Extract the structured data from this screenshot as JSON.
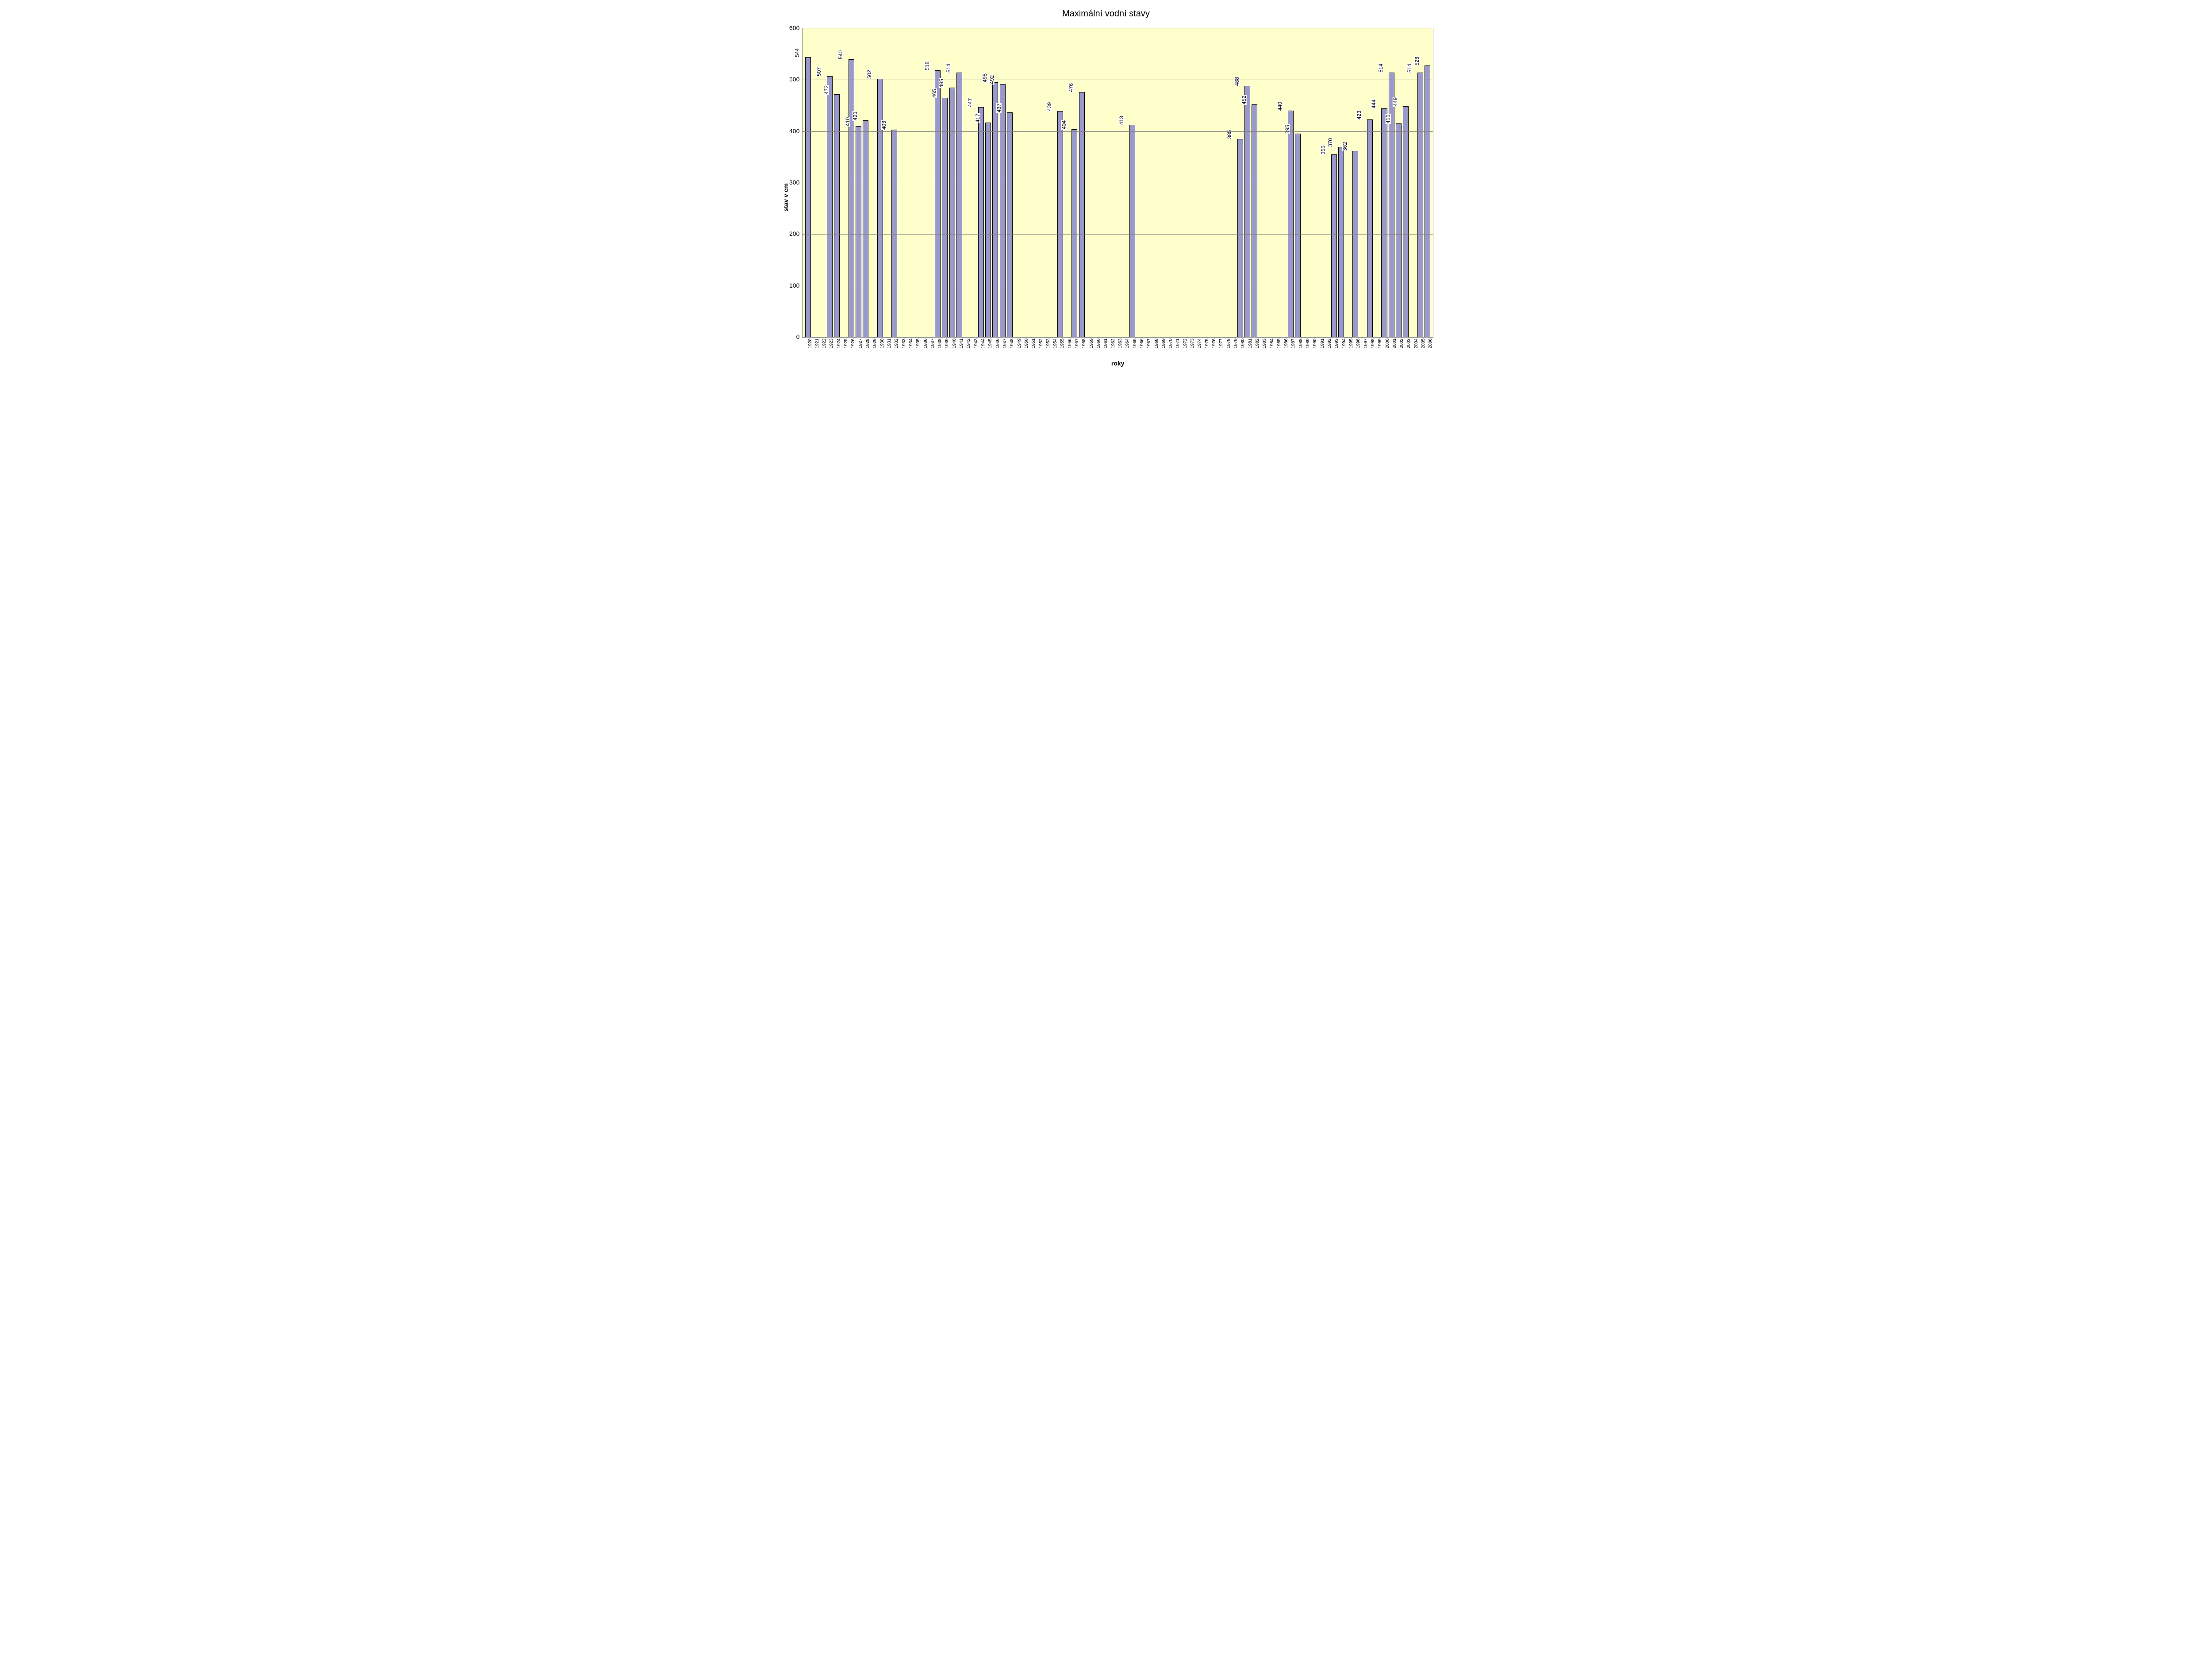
{
  "chart": {
    "type": "bar",
    "title": "Maximální vodní stavy",
    "xlabel": "roky",
    "ylabel": "stav v cm",
    "ylim": [
      0,
      600
    ],
    "ytick_step": 100,
    "yticks": [
      0,
      100,
      200,
      300,
      400,
      500,
      600
    ],
    "background_color": "#ffffcc",
    "grid_color": "#808080",
    "bar_color": "#9999cc",
    "bar_border_color": "#000000",
    "title_fontsize": 20,
    "label_fontsize": 14,
    "tick_fontsize_x": 10,
    "tick_fontsize_y": 14,
    "value_label_fontsize": 12,
    "categories": [
      "1920",
      "1921",
      "1922",
      "1923",
      "1924",
      "1925",
      "1926",
      "1927",
      "1928",
      "1929",
      "1930",
      "1931",
      "1932",
      "1933",
      "1934",
      "1935",
      "1936",
      "1937",
      "1938",
      "1939",
      "1940",
      "1941",
      "1942",
      "1943",
      "1944",
      "1945",
      "1946",
      "1947",
      "1948",
      "1949",
      "1950",
      "1951",
      "1952",
      "1953",
      "1954",
      "1955",
      "1956",
      "1957",
      "1958",
      "1959",
      "1960",
      "1961",
      "1962",
      "1963",
      "1964",
      "1965",
      "1966",
      "1967",
      "1968",
      "1969",
      "1970",
      "1971",
      "1972",
      "1973",
      "1974",
      "1975",
      "1976",
      "1977",
      "1978",
      "1979",
      "1980",
      "1981",
      "1982",
      "1983",
      "1984",
      "1985",
      "1986",
      "1987",
      "1988",
      "1989",
      "1990",
      "1991",
      "1992",
      "1993",
      "1994",
      "1995",
      "1996",
      "1997",
      "1998",
      "1999",
      "2000",
      "2001",
      "2002",
      "2003",
      "2004",
      "2005",
      "2006"
    ],
    "values": [
      544,
      null,
      null,
      507,
      472,
      null,
      540,
      410,
      421,
      null,
      502,
      null,
      403,
      null,
      null,
      null,
      null,
      null,
      518,
      465,
      485,
      514,
      null,
      null,
      447,
      417,
      495,
      492,
      437,
      null,
      null,
      null,
      null,
      null,
      null,
      439,
      null,
      404,
      476,
      null,
      null,
      null,
      null,
      null,
      null,
      413,
      null,
      null,
      null,
      null,
      null,
      null,
      null,
      null,
      null,
      null,
      null,
      null,
      null,
      null,
      385,
      488,
      452,
      null,
      null,
      null,
      null,
      440,
      395,
      null,
      null,
      null,
      null,
      355,
      370,
      null,
      362,
      null,
      423,
      null,
      444,
      514,
      415,
      449,
      null,
      514,
      528
    ]
  }
}
